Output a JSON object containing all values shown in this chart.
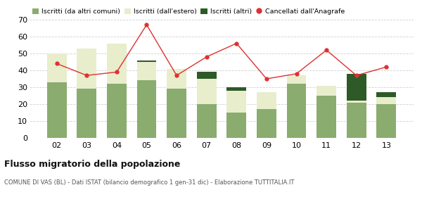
{
  "years": [
    "02",
    "03",
    "04",
    "05",
    "06",
    "07",
    "08",
    "09",
    "10",
    "11",
    "12",
    "13"
  ],
  "iscritti_altri_comuni": [
    33,
    29,
    32,
    34,
    29,
    20,
    15,
    17,
    32,
    25,
    21,
    20
  ],
  "iscritti_estero": [
    17,
    24,
    24,
    11,
    12,
    15,
    13,
    10,
    5,
    6,
    1,
    4
  ],
  "iscritti_altri": [
    0,
    0,
    0,
    1,
    0,
    4,
    2,
    0,
    0,
    0,
    16,
    3
  ],
  "cancellati": [
    44,
    37,
    39,
    67,
    37,
    48,
    56,
    35,
    38,
    52,
    37,
    42
  ],
  "color_altri_comuni": "#8aac6e",
  "color_estero": "#e8edcc",
  "color_altri": "#2d5a27",
  "color_cancellati": "#e03030",
  "ylim": [
    0,
    70
  ],
  "yticks": [
    0,
    10,
    20,
    30,
    40,
    50,
    60,
    70
  ],
  "title": "Flusso migratorio della popolazione",
  "subtitle": "COMUNE DI VAS (BL) - Dati ISTAT (bilancio demografico 1 gen-31 dic) - Elaborazione TUTTITALIA.IT",
  "legend_labels": [
    "Iscritti (da altri comuni)",
    "Iscritti (dall'estero)",
    "Iscritti (altri)",
    "Cancellati dall'Anagrafe"
  ],
  "background_color": "#ffffff",
  "grid_color": "#d0d0d0"
}
